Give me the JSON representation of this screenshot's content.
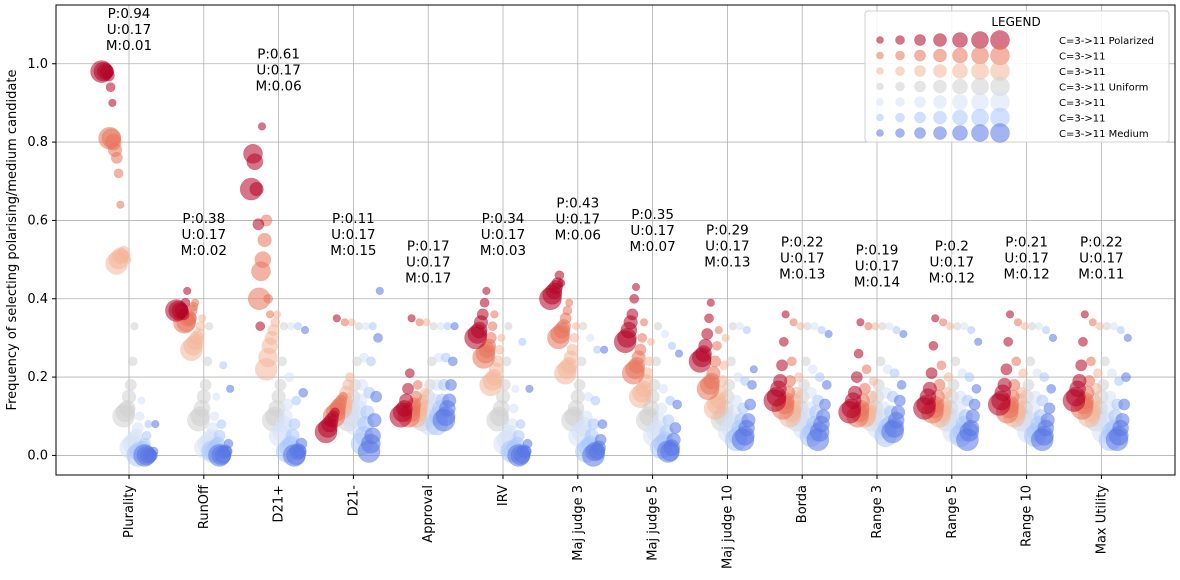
{
  "chart_data": {
    "type": "scatter",
    "ylabel": "Frequency of selecting polarising/medium candidate",
    "ylim": [
      -0.05,
      1.15
    ],
    "yticks": [
      "0.0",
      "0.2",
      "0.4",
      "0.6",
      "0.8",
      "1.0"
    ],
    "grid": true,
    "categories": [
      "Plurality",
      "RunOff",
      "D21+",
      "D21-",
      "Approval",
      "IRV",
      "Maj judge 3",
      "Maj judge 5",
      "Maj judge 10",
      "Borda",
      "Range 3",
      "Range 5",
      "Range 10",
      "Max Utility"
    ],
    "annotations": [
      {
        "category": "Plurality",
        "lines": [
          "P:0.94",
          "U:0.17",
          "M:0.01"
        ]
      },
      {
        "category": "RunOff",
        "lines": [
          "P:0.38",
          "U:0.17",
          "M:0.02"
        ]
      },
      {
        "category": "D21+",
        "lines": [
          "P:0.61",
          "U:0.17",
          "M:0.06"
        ]
      },
      {
        "category": "D21-",
        "lines": [
          "P:0.11",
          "U:0.17",
          "M:0.15"
        ]
      },
      {
        "category": "Approval",
        "lines": [
          "P:0.17",
          "U:0.17",
          "M:0.17"
        ]
      },
      {
        "category": "IRV",
        "lines": [
          "P:0.34",
          "U:0.17",
          "M:0.03"
        ]
      },
      {
        "category": "Maj judge 3",
        "lines": [
          "P:0.43",
          "U:0.17",
          "M:0.06"
        ]
      },
      {
        "category": "Maj judge 5",
        "lines": [
          "P:0.35",
          "U:0.17",
          "M:0.07"
        ]
      },
      {
        "category": "Maj judge 10",
        "lines": [
          "P:0.29",
          "U:0.17",
          "M:0.13"
        ]
      },
      {
        "category": "Borda",
        "lines": [
          "P:0.22",
          "U:0.17",
          "M:0.13"
        ]
      },
      {
        "category": "Range 3",
        "lines": [
          "P:0.19",
          "U:0.17",
          "M:0.14"
        ]
      },
      {
        "category": "Range 5",
        "lines": [
          "P:0.2",
          "U:0.17",
          "M:0.12"
        ]
      },
      {
        "category": "Range 10",
        "lines": [
          "P:0.21",
          "U:0.17",
          "M:0.12"
        ]
      },
      {
        "category": "Max Utility",
        "lines": [
          "P:0.22",
          "U:0.17",
          "M:0.11"
        ]
      }
    ],
    "legend": {
      "title": "LEGEND",
      "placement": "top-right",
      "entries": [
        {
          "label": "C=3->11 Polarized",
          "color": "#b40426"
        },
        {
          "label": "C=3->11",
          "color": "#e7745b"
        },
        {
          "label": "C=3->11",
          "color": "#f4b79b"
        },
        {
          "label": "C=3->11 Uniform",
          "color": "#cfcfcf"
        },
        {
          "label": "C=3->11",
          "color": "#d5e1f5"
        },
        {
          "label": "C=3->11",
          "color": "#aac7fd"
        },
        {
          "label": "C=3->11 Medium",
          "color": "#5977e3"
        }
      ]
    },
    "series": [
      {
        "label": "C=3->11 Polarized",
        "color": "#b40426",
        "values": [
          [
            0.98,
            0.98,
            0.98,
            0.98,
            0.97,
            0.94,
            0.9
          ],
          [
            0.37,
            0.37,
            0.37,
            0.37,
            0.36,
            0.39,
            0.42
          ],
          [
            0.68,
            0.77,
            0.75,
            0.68,
            0.59,
            0.33,
            0.84
          ],
          [
            0.06,
            0.07,
            0.08,
            0.09,
            0.1,
            0.11,
            0.35
          ],
          [
            0.1,
            0.11,
            0.12,
            0.14,
            0.17,
            0.21,
            0.35
          ],
          [
            0.3,
            0.31,
            0.32,
            0.34,
            0.36,
            0.39,
            0.42
          ],
          [
            0.4,
            0.41,
            0.42,
            0.43,
            0.44,
            0.46,
            0.44
          ],
          [
            0.29,
            0.3,
            0.32,
            0.34,
            0.36,
            0.4,
            0.43
          ],
          [
            0.24,
            0.25,
            0.26,
            0.28,
            0.31,
            0.35,
            0.39
          ],
          [
            0.14,
            0.15,
            0.17,
            0.19,
            0.23,
            0.29,
            0.36
          ],
          [
            0.11,
            0.12,
            0.14,
            0.16,
            0.2,
            0.26,
            0.34
          ],
          [
            0.12,
            0.13,
            0.15,
            0.17,
            0.21,
            0.28,
            0.35
          ],
          [
            0.13,
            0.14,
            0.16,
            0.18,
            0.22,
            0.29,
            0.36
          ],
          [
            0.14,
            0.15,
            0.17,
            0.19,
            0.23,
            0.29,
            0.36
          ]
        ]
      },
      {
        "label": "C=3->11",
        "color": "#e7745b",
        "values": [
          [
            0.81,
            0.81,
            0.8,
            0.78,
            0.76,
            0.72,
            0.64
          ],
          [
            0.34,
            0.34,
            0.35,
            0.35,
            0.37,
            0.38,
            0.39
          ],
          [
            0.4,
            0.47,
            0.5,
            0.55,
            0.6,
            0.4,
            0.36
          ],
          [
            0.1,
            0.11,
            0.12,
            0.13,
            0.14,
            0.15,
            0.34
          ],
          [
            0.1,
            0.11,
            0.12,
            0.13,
            0.15,
            0.18,
            0.34
          ],
          [
            0.25,
            0.26,
            0.27,
            0.28,
            0.3,
            0.33,
            0.36
          ],
          [
            0.3,
            0.31,
            0.32,
            0.33,
            0.35,
            0.37,
            0.39
          ],
          [
            0.21,
            0.22,
            0.23,
            0.25,
            0.27,
            0.3,
            0.34
          ],
          [
            0.17,
            0.18,
            0.19,
            0.21,
            0.24,
            0.28,
            0.32
          ],
          [
            0.12,
            0.13,
            0.14,
            0.16,
            0.19,
            0.24,
            0.34
          ],
          [
            0.1,
            0.11,
            0.12,
            0.14,
            0.17,
            0.22,
            0.33
          ],
          [
            0.11,
            0.12,
            0.13,
            0.15,
            0.18,
            0.23,
            0.34
          ],
          [
            0.11,
            0.12,
            0.13,
            0.15,
            0.18,
            0.24,
            0.34
          ],
          [
            0.12,
            0.13,
            0.14,
            0.16,
            0.19,
            0.24,
            0.34
          ]
        ]
      },
      {
        "label": "C=3->11",
        "color": "#f4b79b",
        "values": [
          [
            0.49,
            0.5,
            0.51,
            0.51,
            0.52,
            0.51,
            0.5
          ],
          [
            0.27,
            0.28,
            0.29,
            0.3,
            0.31,
            0.33,
            0.35
          ],
          [
            0.22,
            0.25,
            0.28,
            0.3,
            0.32,
            0.34,
            0.36
          ],
          [
            0.12,
            0.13,
            0.14,
            0.16,
            0.18,
            0.2,
            0.34
          ],
          [
            0.1,
            0.11,
            0.12,
            0.13,
            0.14,
            0.16,
            0.34
          ],
          [
            0.18,
            0.19,
            0.2,
            0.22,
            0.24,
            0.27,
            0.3
          ],
          [
            0.21,
            0.22,
            0.23,
            0.25,
            0.27,
            0.3,
            0.33
          ],
          [
            0.15,
            0.16,
            0.17,
            0.19,
            0.21,
            0.24,
            0.29
          ],
          [
            0.12,
            0.13,
            0.14,
            0.16,
            0.19,
            0.23,
            0.3
          ],
          [
            0.1,
            0.11,
            0.12,
            0.14,
            0.16,
            0.2,
            0.33
          ],
          [
            0.1,
            0.1,
            0.11,
            0.12,
            0.15,
            0.19,
            0.33
          ],
          [
            0.1,
            0.11,
            0.12,
            0.13,
            0.16,
            0.2,
            0.33
          ],
          [
            0.1,
            0.11,
            0.12,
            0.14,
            0.16,
            0.21,
            0.33
          ],
          [
            0.1,
            0.11,
            0.12,
            0.14,
            0.17,
            0.21,
            0.33
          ]
        ]
      },
      {
        "label": "C=3->11 Uniform",
        "color": "#cfcfcf",
        "values": [
          [
            0.1,
            0.11,
            0.12,
            0.15,
            0.18,
            0.24,
            0.33
          ],
          [
            0.09,
            0.1,
            0.12,
            0.15,
            0.18,
            0.24,
            0.33
          ],
          [
            0.09,
            0.1,
            0.12,
            0.15,
            0.18,
            0.24,
            0.33
          ],
          [
            0.09,
            0.1,
            0.12,
            0.15,
            0.18,
            0.24,
            0.33
          ],
          [
            0.09,
            0.1,
            0.12,
            0.15,
            0.18,
            0.24,
            0.33
          ],
          [
            0.09,
            0.1,
            0.12,
            0.15,
            0.18,
            0.24,
            0.33
          ],
          [
            0.09,
            0.1,
            0.12,
            0.15,
            0.18,
            0.24,
            0.33
          ],
          [
            0.09,
            0.1,
            0.12,
            0.15,
            0.18,
            0.24,
            0.33
          ],
          [
            0.09,
            0.1,
            0.12,
            0.15,
            0.18,
            0.24,
            0.33
          ],
          [
            0.09,
            0.1,
            0.12,
            0.15,
            0.18,
            0.24,
            0.33
          ],
          [
            0.09,
            0.1,
            0.12,
            0.15,
            0.18,
            0.24,
            0.33
          ],
          [
            0.09,
            0.1,
            0.12,
            0.15,
            0.18,
            0.24,
            0.33
          ],
          [
            0.09,
            0.1,
            0.12,
            0.15,
            0.18,
            0.24,
            0.33
          ],
          [
            0.09,
            0.1,
            0.12,
            0.15,
            0.18,
            0.24,
            0.33
          ]
        ]
      },
      {
        "label": "C=3->11",
        "color": "#d5e1f5",
        "values": [
          [
            0.02,
            0.03,
            0.04,
            0.05,
            0.07,
            0.1,
            0.14
          ],
          [
            0.02,
            0.03,
            0.04,
            0.05,
            0.07,
            0.1,
            0.15
          ],
          [
            0.05,
            0.06,
            0.08,
            0.1,
            0.13,
            0.2,
            0.33
          ],
          [
            0.08,
            0.1,
            0.12,
            0.14,
            0.18,
            0.25,
            0.33
          ],
          [
            0.08,
            0.1,
            0.12,
            0.14,
            0.18,
            0.25,
            0.33
          ],
          [
            0.03,
            0.04,
            0.05,
            0.06,
            0.08,
            0.12,
            0.17
          ],
          [
            0.05,
            0.06,
            0.07,
            0.08,
            0.1,
            0.15,
            0.3
          ],
          [
            0.05,
            0.06,
            0.07,
            0.09,
            0.12,
            0.17,
            0.31
          ],
          [
            0.06,
            0.07,
            0.09,
            0.11,
            0.14,
            0.2,
            0.33
          ],
          [
            0.07,
            0.08,
            0.1,
            0.12,
            0.16,
            0.22,
            0.33
          ],
          [
            0.07,
            0.08,
            0.1,
            0.12,
            0.16,
            0.22,
            0.33
          ],
          [
            0.06,
            0.08,
            0.09,
            0.12,
            0.15,
            0.21,
            0.33
          ],
          [
            0.06,
            0.08,
            0.09,
            0.12,
            0.15,
            0.21,
            0.33
          ],
          [
            0.06,
            0.08,
            0.09,
            0.12,
            0.15,
            0.21,
            0.33
          ]
        ]
      },
      {
        "label": "C=3->11",
        "color": "#aac7fd",
        "values": [
          [
            0.0,
            0.01,
            0.01,
            0.02,
            0.03,
            0.05,
            0.08
          ],
          [
            0.01,
            0.01,
            0.02,
            0.03,
            0.05,
            0.08,
            0.23
          ],
          [
            0.01,
            0.02,
            0.03,
            0.05,
            0.08,
            0.14,
            0.33
          ],
          [
            0.03,
            0.05,
            0.08,
            0.11,
            0.16,
            0.24,
            0.33
          ],
          [
            0.08,
            0.1,
            0.12,
            0.14,
            0.18,
            0.25,
            0.33
          ],
          [
            0.01,
            0.01,
            0.02,
            0.03,
            0.05,
            0.08,
            0.29
          ],
          [
            0.01,
            0.02,
            0.03,
            0.05,
            0.08,
            0.14,
            0.27
          ],
          [
            0.02,
            0.03,
            0.04,
            0.06,
            0.09,
            0.14,
            0.28
          ],
          [
            0.04,
            0.05,
            0.07,
            0.09,
            0.12,
            0.19,
            0.32
          ],
          [
            0.05,
            0.06,
            0.08,
            0.11,
            0.14,
            0.2,
            0.32
          ],
          [
            0.05,
            0.07,
            0.08,
            0.11,
            0.15,
            0.21,
            0.32
          ],
          [
            0.05,
            0.06,
            0.08,
            0.1,
            0.14,
            0.2,
            0.32
          ],
          [
            0.05,
            0.06,
            0.08,
            0.1,
            0.14,
            0.2,
            0.32
          ],
          [
            0.04,
            0.06,
            0.07,
            0.1,
            0.13,
            0.19,
            0.32
          ]
        ]
      },
      {
        "label": "C=3->11 Medium",
        "color": "#5977e3",
        "values": [
          [
            0.0,
            0.0,
            0.0,
            0.0,
            0.0,
            0.01,
            0.08
          ],
          [
            0.0,
            0.0,
            0.0,
            0.01,
            0.01,
            0.03,
            0.17
          ],
          [
            0.0,
            0.0,
            0.01,
            0.01,
            0.03,
            0.16,
            0.32
          ],
          [
            0.01,
            0.03,
            0.05,
            0.09,
            0.15,
            0.3,
            0.42
          ],
          [
            0.09,
            0.1,
            0.12,
            0.14,
            0.18,
            0.24,
            0.33
          ],
          [
            0.0,
            0.0,
            0.0,
            0.01,
            0.01,
            0.03,
            0.17
          ],
          [
            0.0,
            0.01,
            0.01,
            0.02,
            0.04,
            0.08,
            0.27
          ],
          [
            0.01,
            0.01,
            0.02,
            0.04,
            0.07,
            0.13,
            0.26
          ],
          [
            0.04,
            0.05,
            0.07,
            0.09,
            0.13,
            0.18,
            0.22
          ],
          [
            0.04,
            0.06,
            0.08,
            0.1,
            0.13,
            0.18,
            0.31
          ],
          [
            0.06,
            0.07,
            0.09,
            0.11,
            0.14,
            0.18,
            0.31
          ],
          [
            0.04,
            0.06,
            0.07,
            0.1,
            0.13,
            0.17,
            0.29
          ],
          [
            0.04,
            0.05,
            0.07,
            0.09,
            0.12,
            0.17,
            0.3
          ],
          [
            0.04,
            0.05,
            0.07,
            0.09,
            0.13,
            0.2,
            0.3
          ]
        ]
      }
    ]
  }
}
